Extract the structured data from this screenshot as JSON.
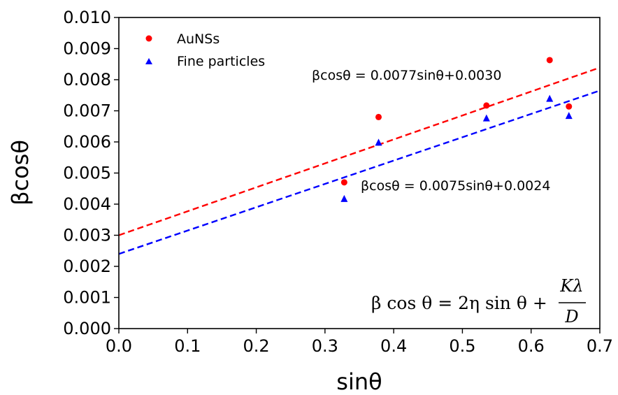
{
  "chart_data": {
    "type": "scatter",
    "xlabel": "sinθ",
    "ylabel": "βcosθ",
    "xlim": [
      0.0,
      0.7
    ],
    "ylim": [
      0.0,
      0.01
    ],
    "x_ticks": [
      "0.0",
      "0.1",
      "0.2",
      "0.3",
      "0.4",
      "0.5",
      "0.6",
      "0.7"
    ],
    "y_ticks": [
      "0.000",
      "0.001",
      "0.002",
      "0.003",
      "0.004",
      "0.005",
      "0.006",
      "0.007",
      "0.008",
      "0.009",
      "0.010"
    ],
    "grid": false,
    "legend_position": "top-left",
    "series": [
      {
        "name": "AuNSs",
        "marker": "circle",
        "color": "#ff0000",
        "x": [
          0.328,
          0.378,
          0.535,
          0.627,
          0.655
        ],
        "y": [
          0.0047,
          0.0068,
          0.00717,
          0.00863,
          0.00714
        ]
      },
      {
        "name": "Fine particles",
        "marker": "triangle",
        "color": "#0000ff",
        "x": [
          0.328,
          0.378,
          0.535,
          0.627,
          0.655
        ],
        "y": [
          0.00416,
          0.00597,
          0.00675,
          0.00738,
          0.00683
        ]
      }
    ],
    "fits": [
      {
        "color": "#ff0000",
        "style": "dashed",
        "slope": 0.0077,
        "intercept": 0.003,
        "label": "βcosθ = 0.0077sinθ+0.0030"
      },
      {
        "color": "#0000ff",
        "style": "dashed",
        "slope": 0.0075,
        "intercept": 0.0024,
        "label": "βcosθ = 0.0075sinθ+0.0024"
      }
    ],
    "equation": {
      "lhs": "β cos θ = 2η sin θ +",
      "numerator": "Kλ",
      "denominator": "D"
    }
  }
}
